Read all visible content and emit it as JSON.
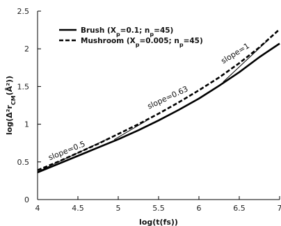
{
  "chart_data": {
    "type": "line",
    "xlabel": "log(t(fs))",
    "ylabel": "log(Δ²r_CM(Å²))",
    "xlim": [
      4,
      7
    ],
    "ylim": [
      0,
      2.5
    ],
    "xticks": [
      "4",
      "4.5",
      "5",
      "5.5",
      "6",
      "6.5",
      "7"
    ],
    "yticks": [
      "0",
      "0.5",
      "1",
      "1.5",
      "2",
      "2.5"
    ],
    "grid": false,
    "legend_position": "top-left",
    "series": [
      {
        "name": "Brush (X_p=0.1; n_p=45)",
        "style": "solid",
        "color": "#000000",
        "x": [
          4.0,
          4.25,
          4.5,
          4.75,
          5.0,
          5.25,
          5.5,
          5.75,
          6.0,
          6.25,
          6.5,
          6.75,
          7.0
        ],
        "y": [
          0.36,
          0.47,
          0.58,
          0.69,
          0.8,
          0.92,
          1.05,
          1.19,
          1.34,
          1.51,
          1.69,
          1.89,
          2.07
        ]
      },
      {
        "name": "Mushroom (X_p=0.005; n_p=45)",
        "style": "dashed",
        "color": "#000000",
        "x": [
          4.0,
          4.25,
          4.5,
          4.75,
          5.0,
          5.25,
          5.5,
          5.75,
          6.0,
          6.25,
          6.5,
          6.75,
          7.0
        ],
        "y": [
          0.39,
          0.5,
          0.62,
          0.74,
          0.87,
          1.0,
          1.14,
          1.29,
          1.45,
          1.62,
          1.81,
          2.02,
          2.26
        ]
      }
    ],
    "annotations": [
      {
        "label": "slope=0.5",
        "slope": 0.5,
        "x": [
          4.0,
          4.85
        ],
        "y": [
          0.37,
          0.795
        ]
      },
      {
        "label": "slope=0.63",
        "slope": 0.63,
        "x": [
          4.95,
          5.35
        ],
        "y": [
          0.795,
          1.047
        ]
      },
      {
        "label": "slope=1",
        "slope": 1,
        "x": [
          6.3,
          6.85
        ],
        "y": [
          1.56,
          2.11
        ]
      }
    ]
  }
}
